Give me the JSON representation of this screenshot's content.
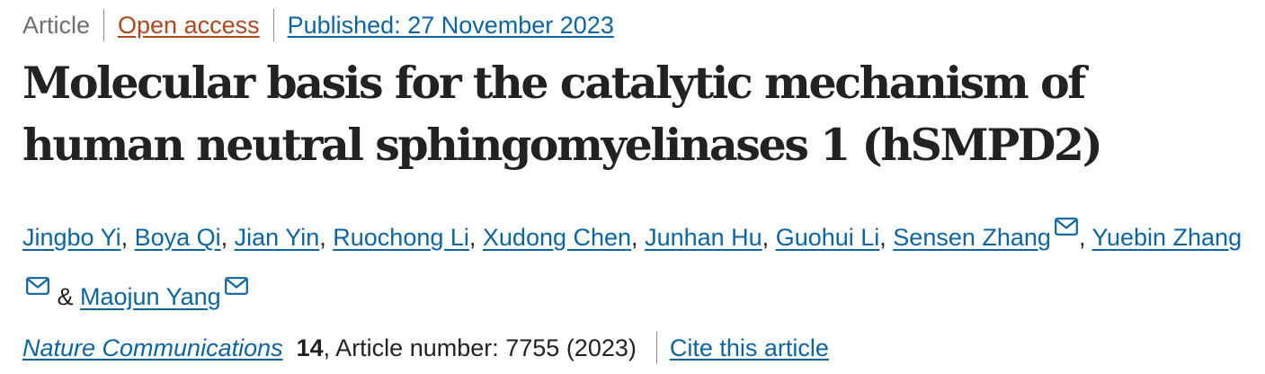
{
  "meta": {
    "article_type": "Article",
    "access": "Open access",
    "published": "Published: 27 November 2023",
    "access_color": "#b0471d",
    "link_color": "#0b65a5"
  },
  "title": "Molecular basis for the catalytic mechanism of human neutral sphingomyelinases 1 (hSMPD2)",
  "authors": [
    {
      "name": "Jingbo Yi",
      "email_icon": false
    },
    {
      "name": "Boya Qi",
      "email_icon": false
    },
    {
      "name": "Jian Yin",
      "email_icon": false
    },
    {
      "name": "Ruochong Li",
      "email_icon": false
    },
    {
      "name": "Xudong Chen",
      "email_icon": false
    },
    {
      "name": "Junhan Hu",
      "email_icon": false
    },
    {
      "name": "Guohui Li",
      "email_icon": false
    },
    {
      "name": "Sensen Zhang",
      "email_icon": true
    },
    {
      "name": "Yuebin Zhang",
      "email_icon": true
    },
    {
      "name": "Maojun Yang",
      "email_icon": true
    }
  ],
  "authors_separator": ", ",
  "authors_last_joiner": " & ",
  "citation": {
    "journal": "Nature Communications",
    "volume": "14",
    "article_number": ", Article number: 7755 (2023)",
    "cite_link": "Cite this article"
  }
}
